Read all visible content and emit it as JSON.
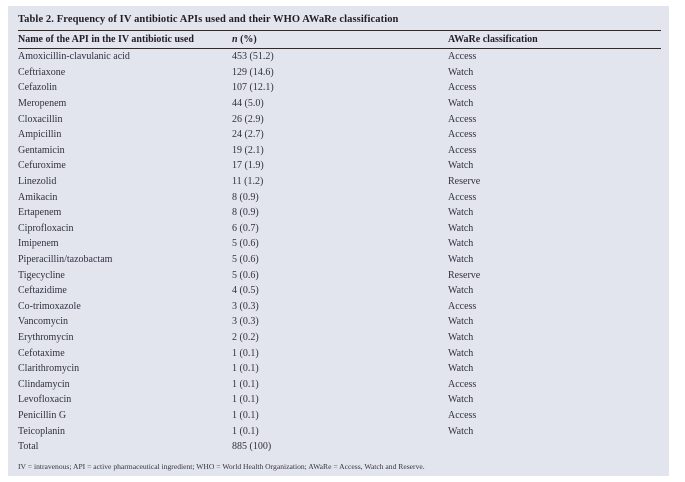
{
  "table": {
    "title": "Table 2. Frequency of IV antibiotic APIs used and their WHO AWaRe classification",
    "headers": {
      "api": "Name of the API in the IV antibiotic used",
      "n_symbol": "n",
      "n_rest": " (%)",
      "aware": "AWaRe classification"
    },
    "rows": [
      {
        "name": "Amoxicillin-clavulanic acid",
        "n": "453 (51.2)",
        "aware": "Access"
      },
      {
        "name": "Ceftriaxone",
        "n": "129 (14.6)",
        "aware": "Watch"
      },
      {
        "name": "Cefazolin",
        "n": "107 (12.1)",
        "aware": "Access"
      },
      {
        "name": "Meropenem",
        "n": "44 (5.0)",
        "aware": "Watch"
      },
      {
        "name": "Cloxacillin",
        "n": "26 (2.9)",
        "aware": "Access"
      },
      {
        "name": "Ampicillin",
        "n": "24 (2.7)",
        "aware": "Access"
      },
      {
        "name": "Gentamicin",
        "n": "19 (2.1)",
        "aware": "Access"
      },
      {
        "name": "Cefuroxime",
        "n": "17 (1.9)",
        "aware": "Watch"
      },
      {
        "name": "Linezolid",
        "n": "11 (1.2)",
        "aware": "Reserve"
      },
      {
        "name": "Amikacin",
        "n": "8 (0.9)",
        "aware": "Access"
      },
      {
        "name": "Ertapenem",
        "n": "8 (0.9)",
        "aware": "Watch"
      },
      {
        "name": "Ciprofloxacin",
        "n": "6 (0.7)",
        "aware": "Watch"
      },
      {
        "name": "Imipenem",
        "n": "5 (0.6)",
        "aware": "Watch"
      },
      {
        "name": "Piperacillin/tazobactam",
        "n": "5 (0.6)",
        "aware": "Watch"
      },
      {
        "name": "Tigecycline",
        "n": "5 (0.6)",
        "aware": "Reserve"
      },
      {
        "name": "Ceftazidime",
        "n": "4 (0.5)",
        "aware": "Watch"
      },
      {
        "name": "Co-trimoxazole",
        "n": "3 (0.3)",
        "aware": "Access"
      },
      {
        "name": "Vancomycin",
        "n": "3 (0.3)",
        "aware": "Watch"
      },
      {
        "name": "Erythromycin",
        "n": "2 (0.2)",
        "aware": "Watch"
      },
      {
        "name": "Cefotaxime",
        "n": "1 (0.1)",
        "aware": "Watch"
      },
      {
        "name": "Clarithromycin",
        "n": "1 (0.1)",
        "aware": "Watch"
      },
      {
        "name": "Clindamycin",
        "n": "1 (0.1)",
        "aware": "Access"
      },
      {
        "name": "Levofloxacin",
        "n": "1 (0.1)",
        "aware": "Watch"
      },
      {
        "name": "Penicillin G",
        "n": "1 (0.1)",
        "aware": "Access"
      },
      {
        "name": "Teicoplanin",
        "n": "1 (0.1)",
        "aware": "Watch"
      },
      {
        "name": "Total",
        "n": "885 (100)",
        "aware": ""
      }
    ],
    "footnote": "IV = intravenous; API = active pharmaceutical ingredient; WHO = World Health Organization; AWaRe = Access, Watch and Reserve."
  },
  "colors": {
    "panel_background": "#e2e4ee",
    "rule": "#342a20",
    "text": "#313040"
  }
}
